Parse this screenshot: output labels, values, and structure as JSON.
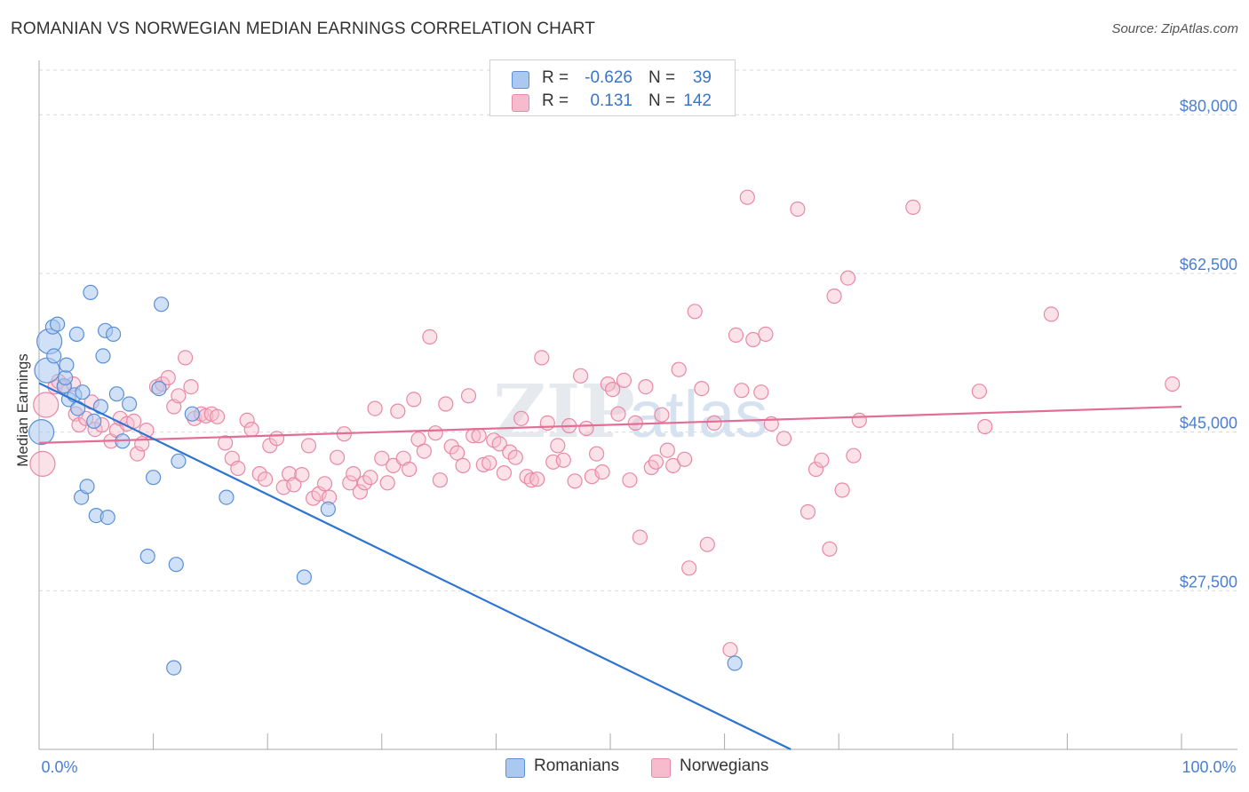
{
  "title": "ROMANIAN VS NORWEGIAN MEDIAN EARNINGS CORRELATION CHART",
  "source": "Source: ZipAtlas.com",
  "watermark": {
    "zip": "ZIP",
    "atlas": "atlas"
  },
  "legend": {
    "romanians": {
      "r_label": "R =",
      "r_value": "-0.626",
      "n_label": "N =",
      "n_value": "39"
    },
    "norwegians": {
      "r_label": "R =",
      "r_value": "0.131",
      "n_label": "N =",
      "n_value": "142"
    }
  },
  "bottom_legend": {
    "romanians": "Romanians",
    "norwegians": "Norwegians"
  },
  "colors": {
    "romanian_fill": "#aac8f0",
    "romanian_stroke": "#5b8fd6",
    "romanian_line": "#2e74d0",
    "norwegian_fill": "#f6bccd",
    "norwegian_stroke": "#e889a6",
    "norwegian_line": "#e36d95",
    "tick_text": "#4a7fd0",
    "grid": "#d8d8d8"
  },
  "chart_data": {
    "type": "scatter",
    "title": "ROMANIAN VS NORWEGIAN MEDIAN EARNINGS CORRELATION CHART",
    "xlabel": "",
    "ylabel": "Median Earnings",
    "xlim": [
      0,
      100
    ],
    "ylim": [
      10000,
      86000
    ],
    "x_tick_labels": [
      "0.0%",
      "100.0%"
    ],
    "y_ticks": [
      {
        "value": 27500,
        "label": "$27,500"
      },
      {
        "value": 45000,
        "label": "$45,000"
      },
      {
        "value": 62500,
        "label": "$62,500"
      },
      {
        "value": 80000,
        "label": "$80,000"
      }
    ],
    "series": [
      {
        "name": "Romanians",
        "r": -0.626,
        "n": 39,
        "trend": {
          "x": [
            0,
            65.8
          ],
          "y": [
            50400,
            10000
          ]
        },
        "points": [
          [
            0.2,
            45000
          ],
          [
            0.7,
            51800
          ],
          [
            0.9,
            55000
          ],
          [
            1.2,
            56600
          ],
          [
            1.3,
            53400
          ],
          [
            1.6,
            56900
          ],
          [
            2.2,
            50100
          ],
          [
            2.3,
            51000
          ],
          [
            2.4,
            52400
          ],
          [
            2.6,
            48600
          ],
          [
            3.1,
            49100
          ],
          [
            3.3,
            55800
          ],
          [
            3.4,
            47600
          ],
          [
            3.7,
            37800
          ],
          [
            3.8,
            49400
          ],
          [
            4.2,
            39000
          ],
          [
            4.5,
            60400
          ],
          [
            4.8,
            46200
          ],
          [
            5.0,
            35800
          ],
          [
            5.4,
            47800
          ],
          [
            5.6,
            53400
          ],
          [
            5.8,
            56200
          ],
          [
            6.0,
            35600
          ],
          [
            6.5,
            55800
          ],
          [
            6.8,
            49200
          ],
          [
            7.3,
            44000
          ],
          [
            7.9,
            48100
          ],
          [
            9.5,
            31300
          ],
          [
            10.0,
            40000
          ],
          [
            10.5,
            49800
          ],
          [
            10.7,
            59100
          ],
          [
            11.8,
            19000
          ],
          [
            12.0,
            30400
          ],
          [
            12.2,
            41800
          ],
          [
            13.4,
            47000
          ],
          [
            16.4,
            37800
          ],
          [
            23.2,
            29000
          ],
          [
            25.3,
            36500
          ],
          [
            60.9,
            19500
          ]
        ]
      },
      {
        "name": "Norwegians",
        "r": 0.131,
        "n": 142,
        "trend": {
          "x": [
            0,
            100
          ],
          "y": [
            43800,
            47800
          ]
        },
        "points": [
          [
            0.3,
            41500
          ],
          [
            0.6,
            48000
          ],
          [
            1.4,
            50000
          ],
          [
            1.7,
            50600
          ],
          [
            2.2,
            49900
          ],
          [
            3.0,
            50300
          ],
          [
            3.2,
            47000
          ],
          [
            3.5,
            45800
          ],
          [
            4.1,
            46500
          ],
          [
            4.6,
            48300
          ],
          [
            4.9,
            45300
          ],
          [
            5.5,
            45800
          ],
          [
            6.3,
            44000
          ],
          [
            6.8,
            45200
          ],
          [
            7.1,
            46500
          ],
          [
            7.7,
            45900
          ],
          [
            8.3,
            46200
          ],
          [
            8.6,
            42600
          ],
          [
            9.0,
            43700
          ],
          [
            9.4,
            45200
          ],
          [
            10.3,
            50000
          ],
          [
            10.8,
            50300
          ],
          [
            11.3,
            51000
          ],
          [
            11.8,
            47800
          ],
          [
            12.2,
            49000
          ],
          [
            12.8,
            53200
          ],
          [
            13.3,
            50000
          ],
          [
            13.6,
            46500
          ],
          [
            14.2,
            47000
          ],
          [
            14.6,
            46800
          ],
          [
            15.1,
            47000
          ],
          [
            15.6,
            46700
          ],
          [
            16.3,
            43800
          ],
          [
            16.9,
            42100
          ],
          [
            17.4,
            41000
          ],
          [
            18.2,
            46300
          ],
          [
            18.6,
            45300
          ],
          [
            19.3,
            40400
          ],
          [
            19.8,
            39800
          ],
          [
            20.2,
            43500
          ],
          [
            20.8,
            44300
          ],
          [
            21.4,
            38900
          ],
          [
            21.9,
            40400
          ],
          [
            22.3,
            39200
          ],
          [
            23.0,
            40300
          ],
          [
            23.6,
            43500
          ],
          [
            24.0,
            37700
          ],
          [
            24.5,
            38200
          ],
          [
            25.0,
            39300
          ],
          [
            25.4,
            37800
          ],
          [
            26.1,
            42200
          ],
          [
            26.7,
            44800
          ],
          [
            27.2,
            39400
          ],
          [
            27.5,
            40400
          ],
          [
            28.1,
            38400
          ],
          [
            28.5,
            39400
          ],
          [
            29.0,
            40000
          ],
          [
            29.4,
            47600
          ],
          [
            30.0,
            42100
          ],
          [
            30.5,
            39400
          ],
          [
            31.0,
            41300
          ],
          [
            31.4,
            47300
          ],
          [
            31.9,
            42100
          ],
          [
            32.4,
            40900
          ],
          [
            32.8,
            48600
          ],
          [
            33.2,
            44200
          ],
          [
            33.7,
            42900
          ],
          [
            34.2,
            55500
          ],
          [
            34.7,
            44900
          ],
          [
            35.1,
            39700
          ],
          [
            35.6,
            48100
          ],
          [
            36.1,
            43400
          ],
          [
            36.6,
            42700
          ],
          [
            37.1,
            41300
          ],
          [
            37.6,
            49000
          ],
          [
            38.0,
            44600
          ],
          [
            38.5,
            44600
          ],
          [
            38.9,
            41400
          ],
          [
            39.4,
            41600
          ],
          [
            39.8,
            44100
          ],
          [
            40.3,
            43700
          ],
          [
            40.7,
            40500
          ],
          [
            41.2,
            42800
          ],
          [
            41.7,
            42200
          ],
          [
            42.2,
            46500
          ],
          [
            42.7,
            40100
          ],
          [
            43.1,
            39700
          ],
          [
            43.6,
            39800
          ],
          [
            44.0,
            53200
          ],
          [
            44.5,
            46000
          ],
          [
            45.0,
            41700
          ],
          [
            45.4,
            43500
          ],
          [
            45.9,
            41900
          ],
          [
            46.4,
            45700
          ],
          [
            46.9,
            39600
          ],
          [
            47.4,
            51200
          ],
          [
            47.9,
            45400
          ],
          [
            48.4,
            40100
          ],
          [
            48.8,
            42600
          ],
          [
            49.3,
            40600
          ],
          [
            49.8,
            50300
          ],
          [
            50.2,
            49700
          ],
          [
            50.7,
            47000
          ],
          [
            51.2,
            50700
          ],
          [
            51.7,
            39700
          ],
          [
            52.2,
            46000
          ],
          [
            52.6,
            33400
          ],
          [
            53.1,
            50000
          ],
          [
            53.6,
            41100
          ],
          [
            54.0,
            41700
          ],
          [
            54.5,
            46900
          ],
          [
            55.0,
            43000
          ],
          [
            55.5,
            41300
          ],
          [
            56.0,
            51900
          ],
          [
            56.5,
            42000
          ],
          [
            56.9,
            30000
          ],
          [
            57.4,
            58300
          ],
          [
            58.0,
            49800
          ],
          [
            58.5,
            32600
          ],
          [
            59.1,
            46000
          ],
          [
            60.5,
            21000
          ],
          [
            61.0,
            55700
          ],
          [
            61.5,
            49600
          ],
          [
            62.0,
            70900
          ],
          [
            62.5,
            55200
          ],
          [
            63.2,
            49400
          ],
          [
            63.6,
            55800
          ],
          [
            64.1,
            45900
          ],
          [
            65.2,
            44300
          ],
          [
            66.4,
            69600
          ],
          [
            67.3,
            36200
          ],
          [
            68.0,
            40900
          ],
          [
            68.5,
            41900
          ],
          [
            69.2,
            32100
          ],
          [
            69.6,
            60000
          ],
          [
            70.3,
            38600
          ],
          [
            70.8,
            62000
          ],
          [
            71.3,
            42400
          ],
          [
            71.8,
            46300
          ],
          [
            76.5,
            69800
          ],
          [
            82.3,
            49500
          ],
          [
            82.8,
            45600
          ],
          [
            88.6,
            58000
          ],
          [
            99.2,
            50300
          ]
        ]
      }
    ]
  }
}
